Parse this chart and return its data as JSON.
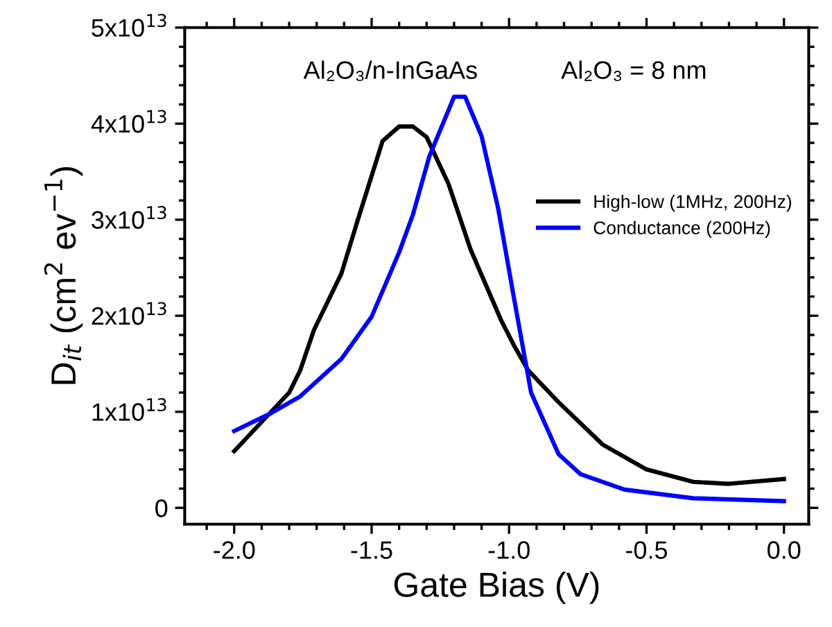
{
  "chart_data": {
    "type": "line",
    "xlabel": "Gate Bias (V)",
    "ylabel": "D$_{it}$ (cm$^{2}$ ev$^{−1}$)",
    "annotations": [
      "Al₂O₃/n-InGaAs",
      "Al₂O₃ = 8 nm"
    ],
    "xlim": [
      -2.18,
      0.09
    ],
    "xticks": [
      {
        "value": -2.0,
        "label": "-2.0"
      },
      {
        "value": -1.5,
        "label": "-1.5"
      },
      {
        "value": -1.0,
        "label": "-1.0"
      },
      {
        "value": -0.5,
        "label": "-0.5"
      },
      {
        "value": 0.0,
        "label": "0.0"
      }
    ],
    "ylim": [
      -1700000000000.0,
      50000000000000.0
    ],
    "yticks": [
      {
        "value": 0,
        "label": "0"
      },
      {
        "value": 10000000000000.0,
        "label": "1x10$^{13}$"
      },
      {
        "value": 20000000000000.0,
        "label": "2x10$^{13}$"
      },
      {
        "value": 30000000000000.0,
        "label": "3x10$^{13}$"
      },
      {
        "value": 40000000000000.0,
        "label": "4x10$^{13}$"
      },
      {
        "value": 50000000000000.0,
        "label": "5x10$^{13}$"
      }
    ],
    "legend": "right",
    "grid": false,
    "marker": "none",
    "line_style": "solid",
    "series": [
      {
        "name": "High-low (1MHz, 200Hz)",
        "color": "#000000",
        "x": [
          -2.0,
          -1.8,
          -1.76,
          -1.71,
          -1.61,
          -1.55,
          -1.46,
          -1.4,
          -1.35,
          -1.3,
          -1.22,
          -1.14,
          -1.03,
          -0.98,
          -0.93,
          -0.82,
          -0.66,
          -0.5,
          -0.33,
          -0.2,
          0.0
        ],
        "values": [
          5900000000000.0,
          12000000000000.0,
          14300000000000.0,
          18500000000000.0,
          24400000000000.0,
          30000000000000.0,
          38200000000000.0,
          39700000000000.0,
          39700000000000.0,
          38600000000000.0,
          33700000000000.0,
          26900000000000.0,
          19600000000000.0,
          16800000000000.0,
          14300000000000.0,
          11000000000000.0,
          6600000000000.0,
          4000000000000.0,
          2700000000000.0,
          2500000000000.0,
          3000000000000.0
        ]
      },
      {
        "name": "Conductance (200Hz)",
        "color": "#0000ff",
        "x": [
          -2.0,
          -1.87,
          -1.76,
          -1.61,
          -1.5,
          -1.4,
          -1.35,
          -1.29,
          -1.2,
          -1.16,
          -1.1,
          -1.04,
          -0.98,
          -0.92,
          -0.82,
          -0.74,
          -0.58,
          -0.33,
          0.0
        ],
        "values": [
          8000000000000.0,
          9800000000000.0,
          11600000000000.0,
          15500000000000.0,
          19900000000000.0,
          26600000000000.0,
          30500000000000.0,
          36600000000000.0,
          42800000000000.0,
          42800000000000.0,
          38700000000000.0,
          31200000000000.0,
          21500000000000.0,
          12000000000000.0,
          5600000000000.0,
          3500000000000.0,
          1900000000000.0,
          1000000000000.0,
          700000000000.0
        ]
      }
    ]
  }
}
